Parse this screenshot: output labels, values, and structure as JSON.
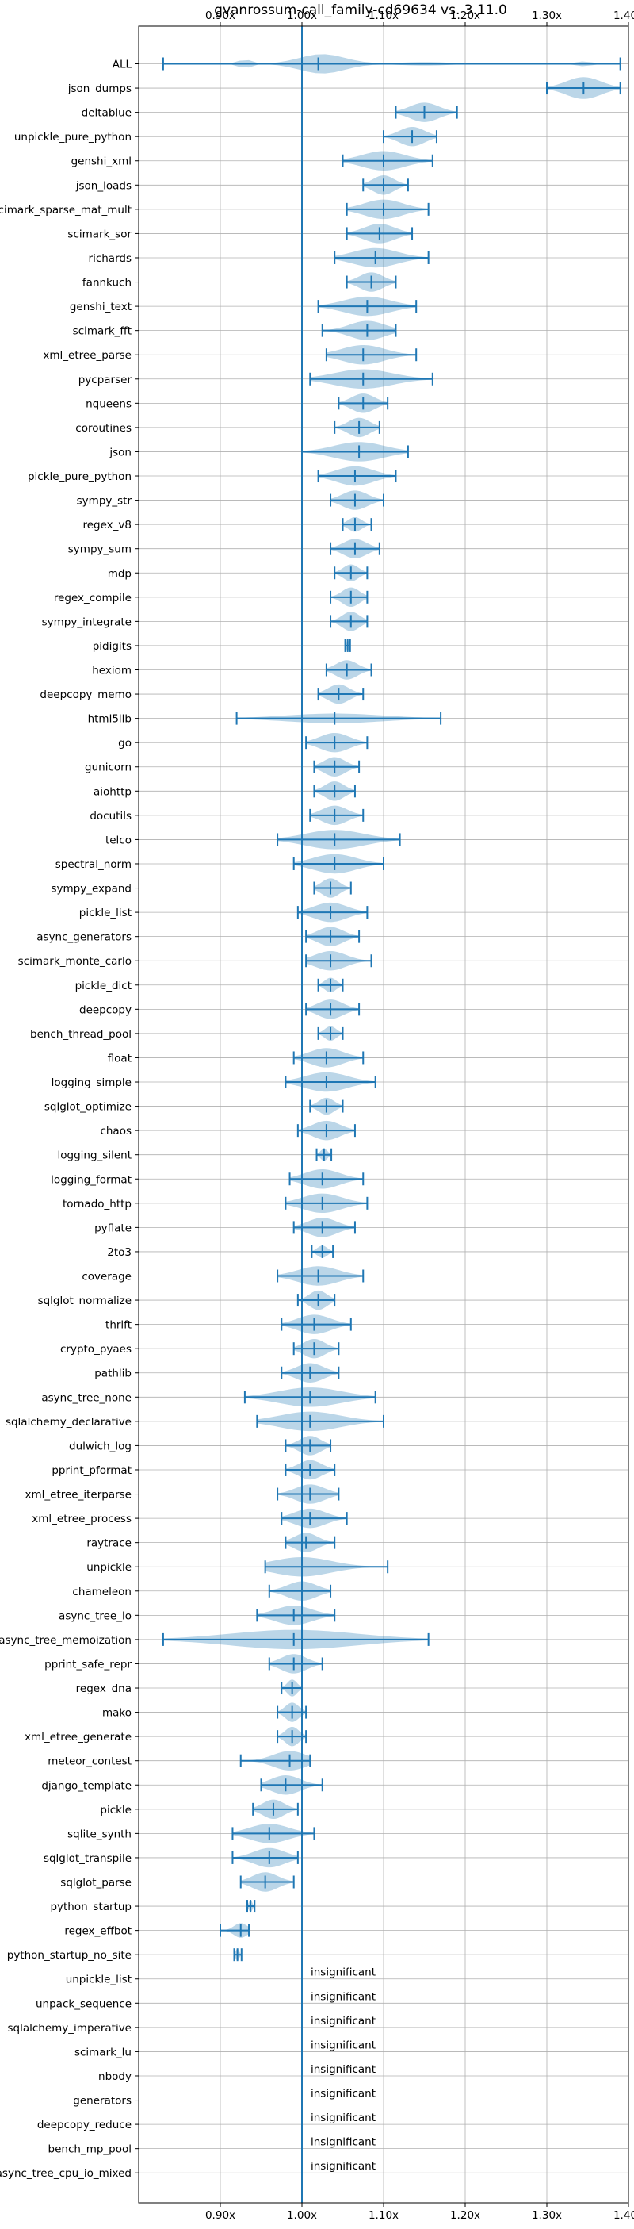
{
  "chart_data": {
    "type": "violin",
    "title": "gvanrossum-call_family-cd69634 vs. 3.11.0",
    "xlim": [
      0.8,
      1.4
    ],
    "xticks": [
      {
        "value": 0.9,
        "label": "0.90x"
      },
      {
        "value": 1.0,
        "label": "1.00x"
      },
      {
        "value": 1.1,
        "label": "1.10x"
      },
      {
        "value": 1.2,
        "label": "1.20x"
      },
      {
        "value": 1.3,
        "label": "1.30x"
      },
      {
        "value": 1.4,
        "label": "1.40x"
      }
    ],
    "reference_line": 1.0,
    "grid": true,
    "insignificant_label": "insignificant",
    "benchmarks": [
      {
        "name": "ALL",
        "min": 0.83,
        "max": 1.39,
        "median": 1.02,
        "width": 0.8,
        "shape": "all"
      },
      {
        "name": "json_dumps",
        "min": 1.3,
        "max": 1.39,
        "median": 1.345,
        "width": 0.9
      },
      {
        "name": "deltablue",
        "min": 1.115,
        "max": 1.19,
        "median": 1.15,
        "width": 0.8
      },
      {
        "name": "unpickle_pure_python",
        "min": 1.1,
        "max": 1.165,
        "median": 1.135,
        "width": 0.8
      },
      {
        "name": "genshi_xml",
        "min": 1.05,
        "max": 1.16,
        "median": 1.1,
        "width": 0.8
      },
      {
        "name": "json_loads",
        "min": 1.075,
        "max": 1.13,
        "median": 1.1,
        "width": 0.8
      },
      {
        "name": "scimark_sparse_mat_mult",
        "min": 1.055,
        "max": 1.155,
        "median": 1.1,
        "width": 0.8
      },
      {
        "name": "scimark_sor",
        "min": 1.055,
        "max": 1.135,
        "median": 1.095,
        "width": 0.8
      },
      {
        "name": "richards",
        "min": 1.04,
        "max": 1.155,
        "median": 1.09,
        "width": 0.8
      },
      {
        "name": "fannkuch",
        "min": 1.055,
        "max": 1.115,
        "median": 1.085,
        "width": 0.8
      },
      {
        "name": "genshi_text",
        "min": 1.02,
        "max": 1.14,
        "median": 1.08,
        "width": 0.8
      },
      {
        "name": "scimark_fft",
        "min": 1.025,
        "max": 1.115,
        "median": 1.08,
        "width": 0.8
      },
      {
        "name": "xml_etree_parse",
        "min": 1.03,
        "max": 1.14,
        "median": 1.075,
        "width": 0.8
      },
      {
        "name": "pycparser",
        "min": 1.01,
        "max": 1.16,
        "median": 1.075,
        "width": 0.8
      },
      {
        "name": "nqueens",
        "min": 1.045,
        "max": 1.105,
        "median": 1.075,
        "width": 0.8
      },
      {
        "name": "coroutines",
        "min": 1.04,
        "max": 1.095,
        "median": 1.07,
        "width": 0.8
      },
      {
        "name": "json",
        "min": 1.0,
        "max": 1.13,
        "median": 1.07,
        "width": 0.8
      },
      {
        "name": "pickle_pure_python",
        "min": 1.02,
        "max": 1.115,
        "median": 1.065,
        "width": 0.8
      },
      {
        "name": "sympy_str",
        "min": 1.035,
        "max": 1.1,
        "median": 1.065,
        "width": 0.8
      },
      {
        "name": "regex_v8",
        "min": 1.05,
        "max": 1.085,
        "median": 1.065,
        "width": 0.6
      },
      {
        "name": "sympy_sum",
        "min": 1.035,
        "max": 1.095,
        "median": 1.065,
        "width": 0.8
      },
      {
        "name": "mdp",
        "min": 1.04,
        "max": 1.08,
        "median": 1.06,
        "width": 0.7
      },
      {
        "name": "regex_compile",
        "min": 1.035,
        "max": 1.08,
        "median": 1.06,
        "width": 0.8
      },
      {
        "name": "sympy_integrate",
        "min": 1.035,
        "max": 1.08,
        "median": 1.06,
        "width": 0.8
      },
      {
        "name": "pidigits",
        "min": 1.053,
        "max": 1.059,
        "median": 1.056,
        "width": 0.5
      },
      {
        "name": "hexiom",
        "min": 1.03,
        "max": 1.085,
        "median": 1.055,
        "width": 0.8
      },
      {
        "name": "deepcopy_memo",
        "min": 1.02,
        "max": 1.075,
        "median": 1.045,
        "width": 0.8
      },
      {
        "name": "html5lib",
        "min": 0.92,
        "max": 1.17,
        "median": 1.04,
        "width": 0.4
      },
      {
        "name": "go",
        "min": 1.005,
        "max": 1.08,
        "median": 1.04,
        "width": 0.8
      },
      {
        "name": "gunicorn",
        "min": 1.015,
        "max": 1.07,
        "median": 1.04,
        "width": 0.8
      },
      {
        "name": "aiohttp",
        "min": 1.015,
        "max": 1.065,
        "median": 1.04,
        "width": 0.8
      },
      {
        "name": "docutils",
        "min": 1.01,
        "max": 1.075,
        "median": 1.04,
        "width": 0.8
      },
      {
        "name": "telco",
        "min": 0.97,
        "max": 1.12,
        "median": 1.04,
        "width": 0.8
      },
      {
        "name": "spectral_norm",
        "min": 0.99,
        "max": 1.1,
        "median": 1.04,
        "width": 0.8
      },
      {
        "name": "sympy_expand",
        "min": 1.015,
        "max": 1.06,
        "median": 1.035,
        "width": 0.8
      },
      {
        "name": "pickle_list",
        "min": 0.995,
        "max": 1.08,
        "median": 1.035,
        "width": 0.8
      },
      {
        "name": "async_generators",
        "min": 1.005,
        "max": 1.07,
        "median": 1.035,
        "width": 0.8
      },
      {
        "name": "scimark_monte_carlo",
        "min": 1.005,
        "max": 1.085,
        "median": 1.035,
        "width": 0.8
      },
      {
        "name": "pickle_dict",
        "min": 1.02,
        "max": 1.05,
        "median": 1.035,
        "width": 0.6
      },
      {
        "name": "deepcopy",
        "min": 1.005,
        "max": 1.07,
        "median": 1.035,
        "width": 0.8
      },
      {
        "name": "bench_thread_pool",
        "min": 1.02,
        "max": 1.05,
        "median": 1.035,
        "width": 0.6
      },
      {
        "name": "float",
        "min": 0.99,
        "max": 1.075,
        "median": 1.03,
        "width": 0.8
      },
      {
        "name": "logging_simple",
        "min": 0.98,
        "max": 1.09,
        "median": 1.03,
        "width": 0.8
      },
      {
        "name": "sqlglot_optimize",
        "min": 1.01,
        "max": 1.05,
        "median": 1.03,
        "width": 0.7
      },
      {
        "name": "chaos",
        "min": 0.995,
        "max": 1.065,
        "median": 1.03,
        "width": 0.8
      },
      {
        "name": "logging_silent",
        "min": 1.018,
        "max": 1.036,
        "median": 1.027,
        "width": 0.5
      },
      {
        "name": "logging_format",
        "min": 0.985,
        "max": 1.075,
        "median": 1.025,
        "width": 0.8
      },
      {
        "name": "tornado_http",
        "min": 0.98,
        "max": 1.08,
        "median": 1.025,
        "width": 0.8
      },
      {
        "name": "pyflate",
        "min": 0.99,
        "max": 1.065,
        "median": 1.025,
        "width": 0.8
      },
      {
        "name": "2to3",
        "min": 1.012,
        "max": 1.038,
        "median": 1.025,
        "width": 0.5
      },
      {
        "name": "coverage",
        "min": 0.97,
        "max": 1.075,
        "median": 1.02,
        "width": 0.8
      },
      {
        "name": "sqlglot_normalize",
        "min": 0.995,
        "max": 1.04,
        "median": 1.02,
        "width": 0.8
      },
      {
        "name": "thrift",
        "min": 0.975,
        "max": 1.06,
        "median": 1.015,
        "width": 0.8
      },
      {
        "name": "crypto_pyaes",
        "min": 0.99,
        "max": 1.045,
        "median": 1.015,
        "width": 0.8
      },
      {
        "name": "pathlib",
        "min": 0.975,
        "max": 1.045,
        "median": 1.01,
        "width": 0.8
      },
      {
        "name": "async_tree_none",
        "min": 0.93,
        "max": 1.09,
        "median": 1.01,
        "width": 0.8
      },
      {
        "name": "sqlalchemy_declarative",
        "min": 0.945,
        "max": 1.1,
        "median": 1.01,
        "width": 0.8
      },
      {
        "name": "dulwich_log",
        "min": 0.98,
        "max": 1.035,
        "median": 1.01,
        "width": 0.8
      },
      {
        "name": "pprint_pformat",
        "min": 0.98,
        "max": 1.04,
        "median": 1.01,
        "width": 0.8
      },
      {
        "name": "xml_etree_iterparse",
        "min": 0.97,
        "max": 1.045,
        "median": 1.01,
        "width": 0.8
      },
      {
        "name": "xml_etree_process",
        "min": 0.975,
        "max": 1.055,
        "median": 1.01,
        "width": 0.8
      },
      {
        "name": "raytrace",
        "min": 0.98,
        "max": 1.04,
        "median": 1.005,
        "width": 0.8
      },
      {
        "name": "unpickle",
        "min": 0.955,
        "max": 1.105,
        "median": 1.0,
        "width": 0.8
      },
      {
        "name": "chameleon",
        "min": 0.96,
        "max": 1.035,
        "median": 1.0,
        "width": 0.8
      },
      {
        "name": "async_tree_io",
        "min": 0.945,
        "max": 1.04,
        "median": 0.99,
        "width": 0.8
      },
      {
        "name": "async_tree_memoization",
        "min": 0.83,
        "max": 1.155,
        "median": 0.99,
        "width": 0.8
      },
      {
        "name": "pprint_safe_repr",
        "min": 0.96,
        "max": 1.025,
        "median": 0.99,
        "width": 0.8
      },
      {
        "name": "regex_dna",
        "min": 0.975,
        "max": 1.0,
        "median": 0.988,
        "width": 0.7
      },
      {
        "name": "mako",
        "min": 0.97,
        "max": 1.005,
        "median": 0.988,
        "width": 0.8
      },
      {
        "name": "xml_etree_generate",
        "min": 0.97,
        "max": 1.005,
        "median": 0.988,
        "width": 0.8
      },
      {
        "name": "meteor_contest",
        "min": 0.925,
        "max": 1.01,
        "median": 0.985,
        "width": 0.8
      },
      {
        "name": "django_template",
        "min": 0.95,
        "max": 1.025,
        "median": 0.98,
        "width": 0.8
      },
      {
        "name": "pickle",
        "min": 0.94,
        "max": 0.995,
        "median": 0.965,
        "width": 0.8
      },
      {
        "name": "sqlite_synth",
        "min": 0.915,
        "max": 1.015,
        "median": 0.96,
        "width": 0.8
      },
      {
        "name": "sqlglot_transpile",
        "min": 0.915,
        "max": 0.995,
        "median": 0.96,
        "width": 0.8
      },
      {
        "name": "sqlglot_parse",
        "min": 0.925,
        "max": 0.99,
        "median": 0.955,
        "width": 0.8
      },
      {
        "name": "python_startup",
        "min": 0.933,
        "max": 0.942,
        "median": 0.937,
        "width": 0.5
      },
      {
        "name": "regex_effbot",
        "min": 0.9,
        "max": 0.935,
        "median": 0.925,
        "width": 0.6
      },
      {
        "name": "python_startup_no_site",
        "min": 0.917,
        "max": 0.926,
        "median": 0.921,
        "width": 0.5
      },
      {
        "name": "unpickle_list",
        "insignificant": true
      },
      {
        "name": "unpack_sequence",
        "insignificant": true
      },
      {
        "name": "sqlalchemy_imperative",
        "insignificant": true
      },
      {
        "name": "scimark_lu",
        "insignificant": true
      },
      {
        "name": "nbody",
        "insignificant": true
      },
      {
        "name": "generators",
        "insignificant": true
      },
      {
        "name": "deepcopy_reduce",
        "insignificant": true
      },
      {
        "name": "bench_mp_pool",
        "insignificant": true
      },
      {
        "name": "async_tree_cpu_io_mixed",
        "insignificant": true
      }
    ]
  }
}
